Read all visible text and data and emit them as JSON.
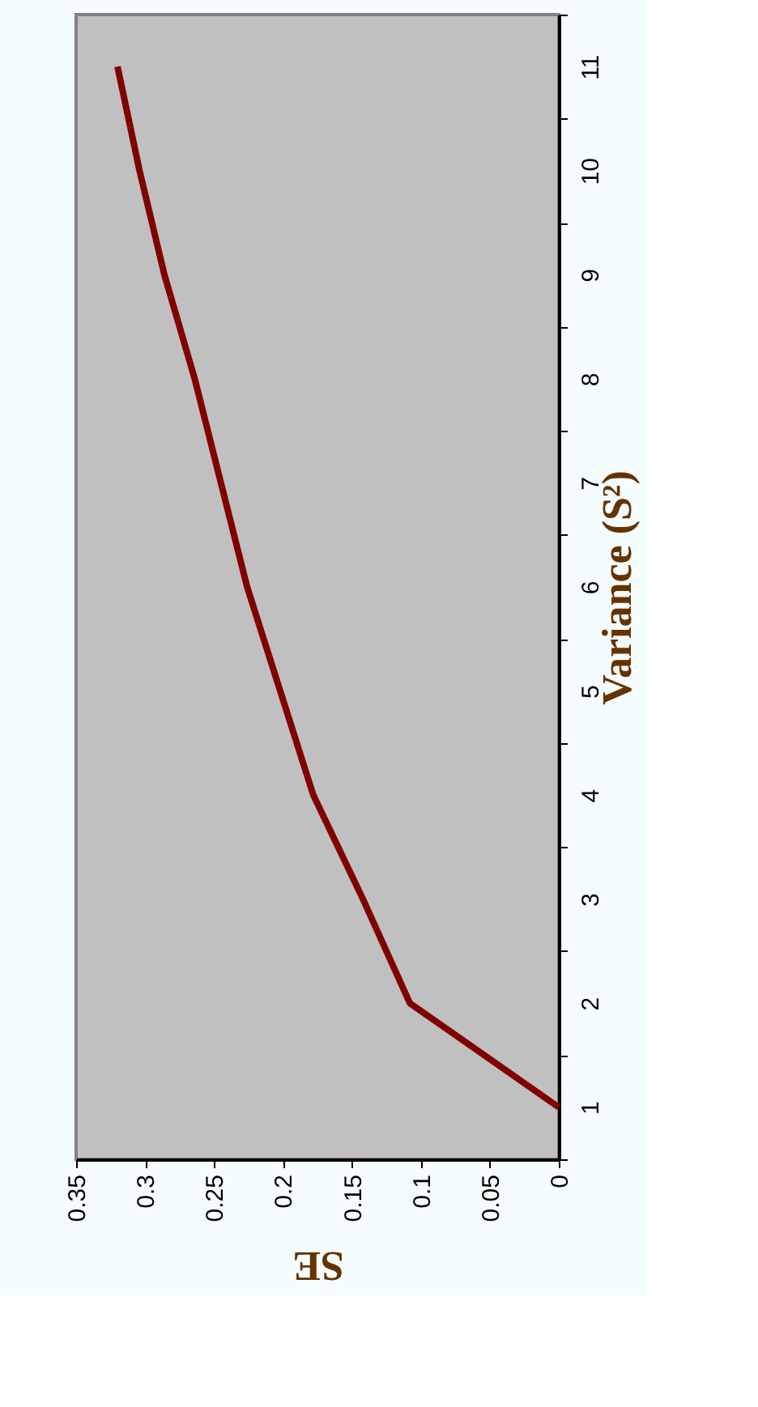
{
  "chart_data": {
    "type": "line",
    "orientation": "horizontal",
    "xlabel": "SE",
    "ylabel": "Variance (S²)",
    "categories": [
      "11",
      "10",
      "9",
      "8",
      "7",
      "6",
      "5",
      "4",
      "3",
      "2",
      "1"
    ],
    "series": [
      {
        "color": "#800000",
        "values": [
          0.32,
          0.304,
          0.286,
          0.264,
          0.245,
          0.226,
          0.202,
          0.178,
          0.142,
          0.108,
          0.0
        ]
      }
    ],
    "xlim": [
      0.35,
      0
    ],
    "xticks": [
      0.35,
      0.3,
      0.25,
      0.2,
      0.15,
      0.1,
      0.05,
      0
    ],
    "grid": false,
    "legend": false,
    "marker": "none",
    "line_style": "solid"
  }
}
